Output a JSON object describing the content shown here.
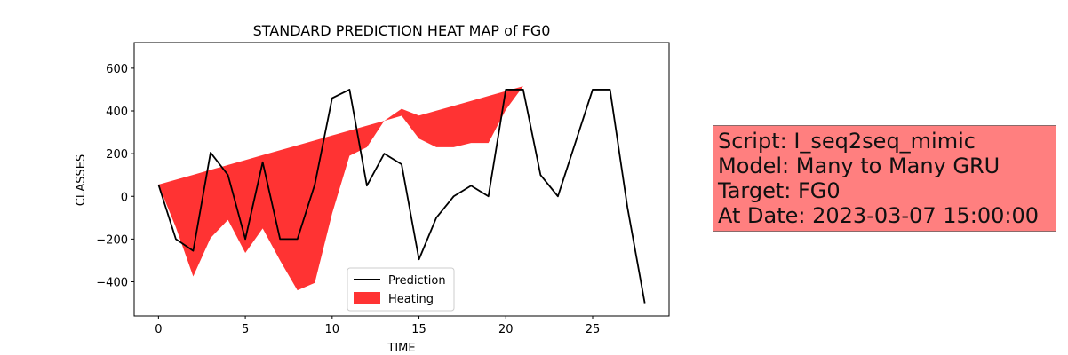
{
  "chart_data": {
    "type": "line",
    "title": "STANDARD PREDICTION HEAT MAP of FG0",
    "xlabel": "TIME",
    "ylabel": "CLASSES",
    "xlim": [
      -1.4,
      29.4
    ],
    "ylim": [
      -560,
      720
    ],
    "xticks": [
      0,
      5,
      10,
      15,
      20,
      25
    ],
    "yticks": [
      -400,
      -200,
      0,
      200,
      400,
      600
    ],
    "grid": false,
    "legend_position": "bottom-center",
    "series": [
      {
        "name": "Prediction",
        "type": "line",
        "color": "#000000",
        "x": [
          0,
          1,
          2,
          3,
          4,
          5,
          6,
          7,
          8,
          9,
          10,
          11,
          12,
          13,
          14,
          15,
          16,
          17,
          18,
          19,
          20,
          21,
          22,
          23,
          24,
          25,
          26,
          27,
          28
        ],
        "values": [
          55,
          -200,
          -255,
          205,
          100,
          -200,
          160,
          -200,
          -200,
          55,
          460,
          500,
          50,
          200,
          150,
          -295,
          -100,
          0,
          50,
          0,
          500,
          500,
          100,
          0,
          250,
          500,
          500,
          -50,
          -500
        ]
      },
      {
        "name": "Heating",
        "type": "fill_between",
        "color": "#ff0000",
        "opacity": 0.8,
        "x": [
          0,
          1,
          2,
          3,
          4,
          5,
          6,
          7,
          8,
          9,
          10,
          11,
          12,
          13,
          14,
          15,
          16,
          17,
          18,
          19,
          20,
          21,
          22,
          23,
          24,
          25,
          26,
          27,
          28
        ],
        "upper": [
          55,
          78,
          101,
          124,
          147,
          170,
          193,
          216,
          239,
          262,
          285,
          308,
          331,
          354,
          410,
          378,
          401,
          424,
          447,
          470,
          493,
          516,
          539,
          540,
          585,
          630,
          660,
          660,
          660
        ],
        "lower": [
          55,
          -145,
          -375,
          -195,
          -110,
          -265,
          -150,
          -300,
          -440,
          -405,
          -80,
          190,
          230,
          354,
          377,
          270,
          230,
          230,
          250,
          250,
          405,
          516,
          539,
          540,
          585,
          630,
          660,
          660,
          660
        ]
      }
    ]
  },
  "info_box": {
    "lines": [
      "Script: I_seq2seq_mimic",
      "Model: Many to Many GRU",
      "Target: FG0",
      "At Date: 2023-03-07 15:00:00"
    ],
    "background": "#ff7f7f"
  }
}
